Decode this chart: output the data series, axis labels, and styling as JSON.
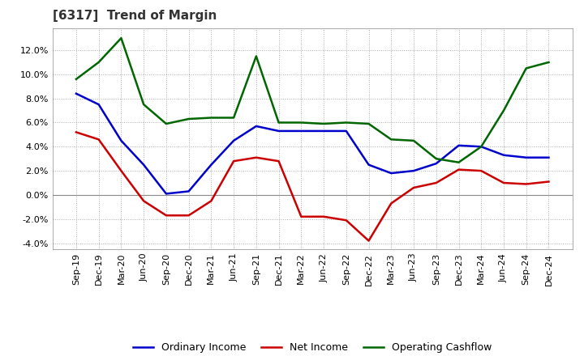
{
  "title": "[6317]  Trend of Margin",
  "x_labels": [
    "Sep-19",
    "Dec-19",
    "Mar-20",
    "Jun-20",
    "Sep-20",
    "Dec-20",
    "Mar-21",
    "Jun-21",
    "Sep-21",
    "Dec-21",
    "Mar-22",
    "Jun-22",
    "Sep-22",
    "Dec-22",
    "Mar-23",
    "Jun-23",
    "Sep-23",
    "Dec-23",
    "Mar-24",
    "Jun-24",
    "Sep-24",
    "Dec-24"
  ],
  "ordinary_income": [
    8.4,
    7.5,
    4.5,
    2.5,
    0.1,
    0.3,
    2.5,
    4.5,
    5.7,
    5.3,
    5.3,
    5.3,
    5.3,
    2.5,
    1.8,
    2.0,
    2.6,
    4.1,
    4.0,
    3.3,
    3.1,
    3.1
  ],
  "net_income": [
    5.2,
    4.6,
    2.0,
    -0.5,
    -1.7,
    -1.7,
    -0.5,
    2.8,
    3.1,
    2.8,
    -1.8,
    -1.8,
    -2.1,
    -3.8,
    -0.7,
    0.6,
    1.0,
    2.1,
    2.0,
    1.0,
    0.9,
    1.1
  ],
  "operating_cashflow": [
    9.6,
    11.0,
    13.0,
    7.5,
    5.9,
    6.3,
    6.4,
    6.4,
    11.5,
    6.0,
    6.0,
    5.9,
    6.0,
    5.9,
    4.6,
    4.5,
    3.0,
    2.7,
    4.0,
    7.0,
    10.5,
    11.0
  ],
  "ordinary_income_color": "#0000CC",
  "net_income_color": "#CC0000",
  "operating_cashflow_color": "#006600",
  "ylim": [
    -4.5,
    13.8
  ],
  "yticks": [
    -4.0,
    -2.0,
    0.0,
    2.0,
    4.0,
    6.0,
    8.0,
    10.0,
    12.0
  ],
  "background_color": "#FFFFFF",
  "plot_bg_color": "#FFFFFF",
  "grid_color": "#AAAAAA",
  "legend_labels": [
    "Ordinary Income",
    "Net Income",
    "Operating Cashflow"
  ],
  "line_width": 1.8,
  "title_fontsize": 11,
  "title_color": "#333333",
  "tick_fontsize": 8,
  "legend_fontsize": 9
}
